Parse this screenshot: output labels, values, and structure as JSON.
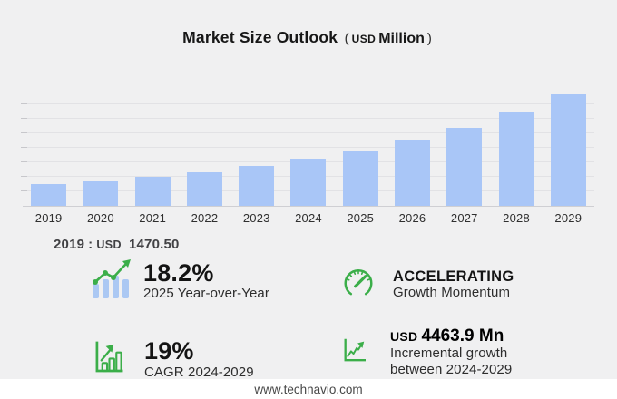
{
  "title": {
    "main": "Market Size Outlook",
    "open_paren": "(",
    "currency": "USD",
    "unit": "Million",
    "close_paren": ")"
  },
  "chart_data": {
    "type": "bar",
    "title": "Market Size Outlook (USD Million)",
    "unit": "USD Million",
    "categories": [
      "2019",
      "2020",
      "2021",
      "2022",
      "2023",
      "2024",
      "2025",
      "2026",
      "2027",
      "2028",
      "2029"
    ],
    "values": [
      1470.5,
      1690.0,
      1985.0,
      2310.0,
      2765.0,
      3219.6,
      3805.6,
      4528.7,
      5389.1,
      6429.4,
      7683.5
    ],
    "xlabel": "",
    "ylabel": "",
    "ylim": [
      0,
      8225
    ],
    "gridline_step": 1000,
    "grid": true,
    "legend": "none",
    "bar_color": "#a9c6f7",
    "notes": "2019 value labeled 1470.50; 2025 YoY 18.2%; CAGR 2024-2029 19%; incremental growth 2024-2029 USD 4463.9 Mn; intermediate values estimated from bar heights"
  },
  "annotation": {
    "year": "2019",
    "separator": ":",
    "currency": "USD",
    "value": "1470.50"
  },
  "stats": {
    "yoy": {
      "value": "18.2%",
      "label": "2025 Year-over-Year",
      "icon": "trend-bars-icon"
    },
    "momentum": {
      "value": "ACCELERATING",
      "label": "Growth Momentum",
      "icon": "gauge-icon"
    },
    "cagr": {
      "value": "19%",
      "label": "CAGR 2024-2029",
      "icon": "growth-bars-icon"
    },
    "incremental": {
      "currency": "USD",
      "value": "4463.9 Mn",
      "label_line1": "Incremental growth",
      "label_line2": "between 2024-2029",
      "icon": "line-chart-up-icon"
    }
  },
  "footer": {
    "url": "www.technavio.com"
  },
  "colors": {
    "background": "#f0f0f1",
    "bar_blue": "#a9c6f7",
    "accent_green": "#3bae49",
    "gridline": "#e2e2e5",
    "axis": "#cfcfd3",
    "text_dark": "#171717",
    "footer_bg": "#ffffff"
  }
}
